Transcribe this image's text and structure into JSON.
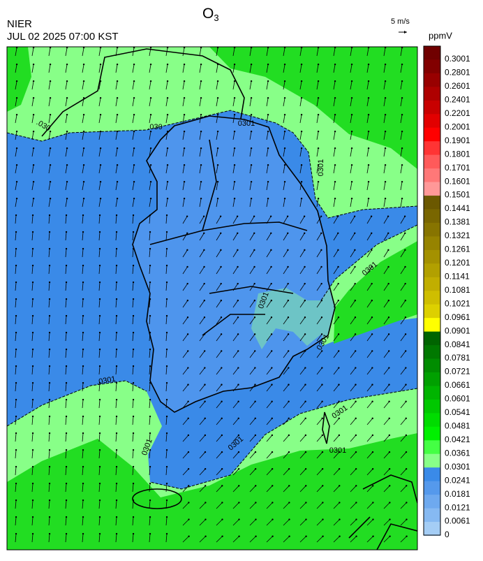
{
  "header": {
    "agency": "NIER",
    "datetime": "JUL 02 2025 07:00 KST",
    "title": {
      "base": "O",
      "subscript": "3"
    },
    "vector_scale": "5 m/s"
  },
  "colorbar": {
    "unit": "ppmV",
    "levels": [
      {
        "value": 0.3001,
        "color": "#700000"
      },
      {
        "value": 0.2801,
        "color": "#820000"
      },
      {
        "value": 0.2601,
        "color": "#980000"
      },
      {
        "value": 0.2401,
        "color": "#ae0000"
      },
      {
        "value": 0.2201,
        "color": "#c80000"
      },
      {
        "value": 0.2001,
        "color": "#e20000"
      },
      {
        "value": 0.1901,
        "color": "#ff0000"
      },
      {
        "value": 0.1801,
        "color": "#ff3434"
      },
      {
        "value": 0.1701,
        "color": "#ff5a5a"
      },
      {
        "value": 0.1601,
        "color": "#ff7878"
      },
      {
        "value": 0.1501,
        "color": "#ff9898"
      },
      {
        "value": 0.1441,
        "color": "#6b5800"
      },
      {
        "value": 0.1381,
        "color": "#796600"
      },
      {
        "value": 0.1321,
        "color": "#877400"
      },
      {
        "value": 0.1261,
        "color": "#968300"
      },
      {
        "value": 0.1201,
        "color": "#a49100"
      },
      {
        "value": 0.1141,
        "color": "#b2a000"
      },
      {
        "value": 0.1081,
        "color": "#c1ae00"
      },
      {
        "value": 0.1021,
        "color": "#cfbe00"
      },
      {
        "value": 0.0961,
        "color": "#ddd000"
      },
      {
        "value": 0.0901,
        "color": "#ffff00"
      },
      {
        "value": 0.0841,
        "color": "#006400"
      },
      {
        "value": 0.0781,
        "color": "#007800"
      },
      {
        "value": 0.0721,
        "color": "#008c00"
      },
      {
        "value": 0.0661,
        "color": "#00a000"
      },
      {
        "value": 0.0601,
        "color": "#00b400"
      },
      {
        "value": 0.0541,
        "color": "#00c800"
      },
      {
        "value": 0.0481,
        "color": "#00dc00"
      },
      {
        "value": 0.0421,
        "color": "#00f000"
      },
      {
        "value": 0.0361,
        "color": "#44ff44"
      },
      {
        "value": 0.0301,
        "color": "#88ff88"
      },
      {
        "value": 0.0241,
        "color": "#3a8ae8"
      },
      {
        "value": 0.0181,
        "color": "#5599ec"
      },
      {
        "value": 0.0121,
        "color": "#6ea9ef"
      },
      {
        "value": 0.0061,
        "color": "#86b9f2"
      },
      {
        "value": 0,
        "color": "#a4cdf5"
      }
    ]
  },
  "map": {
    "contour_labels": [
      ".030",
      ".030",
      "0301",
      "0301",
      "0301",
      "0301",
      "0301",
      ".0301",
      "0301",
      "0301",
      "0301",
      "0301"
    ]
  }
}
